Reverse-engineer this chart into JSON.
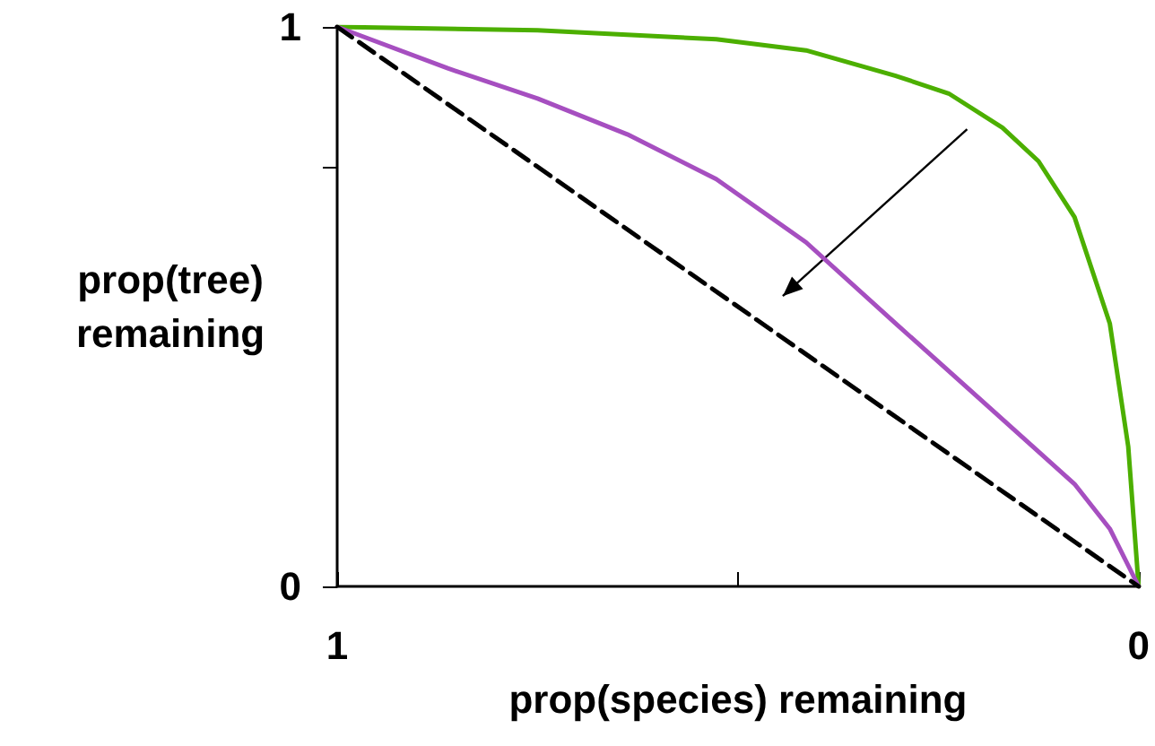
{
  "chart_data": {
    "type": "line",
    "xlabel": "prop(species) remaining",
    "ylabel": "prop(tree)\nremaining",
    "xlim": [
      1,
      0
    ],
    "xticks": [
      1,
      {
        "value": 0.5,
        "label": null
      },
      0
    ],
    "ylim": [
      0,
      1
    ],
    "yticks": [
      0,
      {
        "value": 0.75,
        "label": null
      },
      1
    ],
    "marker": "none",
    "grid": false,
    "series": [
      {
        "color": "#4caf00",
        "line_style": "solid",
        "x": [
          1,
          0.75,
          0.527,
          0.415,
          0.304,
          0.237,
          0.17,
          0.125,
          0.08,
          0.036,
          0.013,
          0
        ],
        "values": [
          1,
          0.994,
          0.978,
          0.958,
          0.913,
          0.881,
          0.82,
          0.76,
          0.66,
          0.47,
          0.25,
          0
        ]
      },
      {
        "color": "#a64fc0",
        "line_style": "solid",
        "x": [
          1,
          0.862,
          0.75,
          0.638,
          0.527,
          0.415,
          0.304,
          0.192,
          0.08,
          0.036,
          0
        ],
        "values": [
          1,
          0.926,
          0.872,
          0.808,
          0.728,
          0.615,
          0.471,
          0.327,
          0.183,
          0.103,
          0
        ]
      },
      {
        "color": "#000000",
        "line_style": "dashed",
        "x": [
          1,
          0
        ],
        "values": [
          1,
          0
        ]
      }
    ]
  }
}
